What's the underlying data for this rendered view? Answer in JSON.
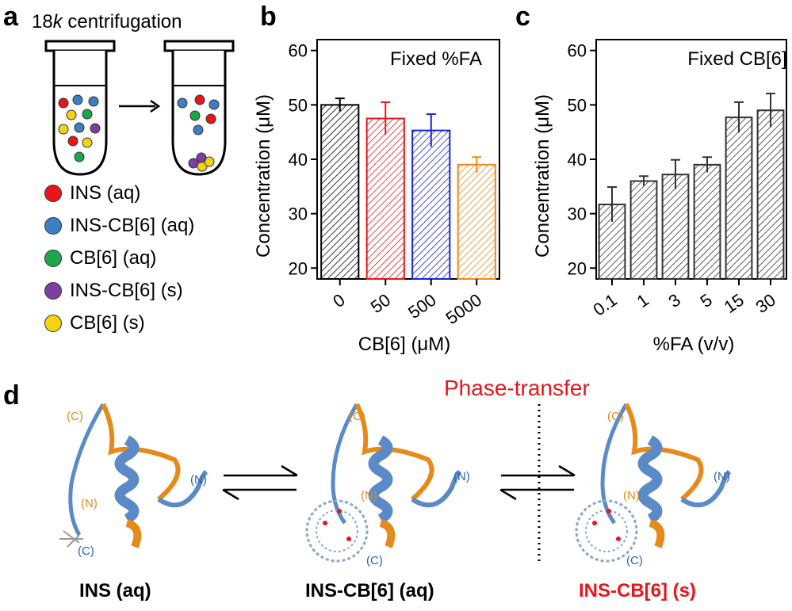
{
  "panels": {
    "a": "a",
    "b": "b",
    "c": "c",
    "d": "d"
  },
  "panel_a": {
    "title_prefix": "18",
    "title_italic": "k",
    "title_suffix": " centrifugation",
    "legend": [
      {
        "label": "INS (aq)",
        "color": "#e8161b"
      },
      {
        "label": "INS-CB[6] (aq)",
        "color": "#3d7fc4"
      },
      {
        "label": "CB[6] (aq)",
        "color": "#1ea64b"
      },
      {
        "label": "INS-CB[6] (s)",
        "color": "#7b3fa0"
      },
      {
        "label": "CB[6] (s)",
        "color": "#f4d313"
      }
    ]
  },
  "chart_data": [
    {
      "type": "bar",
      "annotation": "Fixed %FA",
      "xlabel": "CB[6] (μM)",
      "ylabel": "Concentration (μM)",
      "categories": [
        "0",
        "50",
        "500",
        "5000"
      ],
      "values": [
        50,
        47.5,
        45.3,
        39
      ],
      "errors": [
        1.2,
        3.0,
        3.0,
        1.4
      ],
      "colors": [
        "#000000",
        "#e8161b",
        "#1a22d6",
        "#f08a1c"
      ],
      "ylim": [
        18,
        62
      ],
      "yticks": [
        20,
        30,
        40,
        50,
        60
      ],
      "hatch": true
    },
    {
      "type": "bar",
      "annotation": "Fixed CB[6]",
      "xlabel": "%FA (v/v)",
      "ylabel": "Concentration (μM)",
      "categories": [
        "0.1",
        "1",
        "3",
        "5",
        "15",
        "30"
      ],
      "values": [
        31.7,
        36,
        37.2,
        39,
        47.7,
        49
      ],
      "errors": [
        3.2,
        0.9,
        2.7,
        1.4,
        2.8,
        3.1
      ],
      "colors": [
        "#333333",
        "#333333",
        "#333333",
        "#333333",
        "#333333",
        "#333333"
      ],
      "ylim": [
        18,
        62
      ],
      "yticks": [
        20,
        30,
        40,
        50,
        60
      ],
      "hatch": true
    }
  ],
  "panel_d": {
    "phase_label": "Phase-transfer",
    "structures": [
      {
        "label": "INS (aq)",
        "color": "#000000"
      },
      {
        "label": "INS-CB[6] (aq)",
        "color": "#000000"
      },
      {
        "label": "INS-CB[6] (s)",
        "color": "#e8161b"
      }
    ],
    "terminus_C": "(C)",
    "terminus_N": "(N)",
    "colors": {
      "orange": "#e68a1a",
      "blue": "#2a62b8",
      "red": "#e8161b"
    }
  }
}
